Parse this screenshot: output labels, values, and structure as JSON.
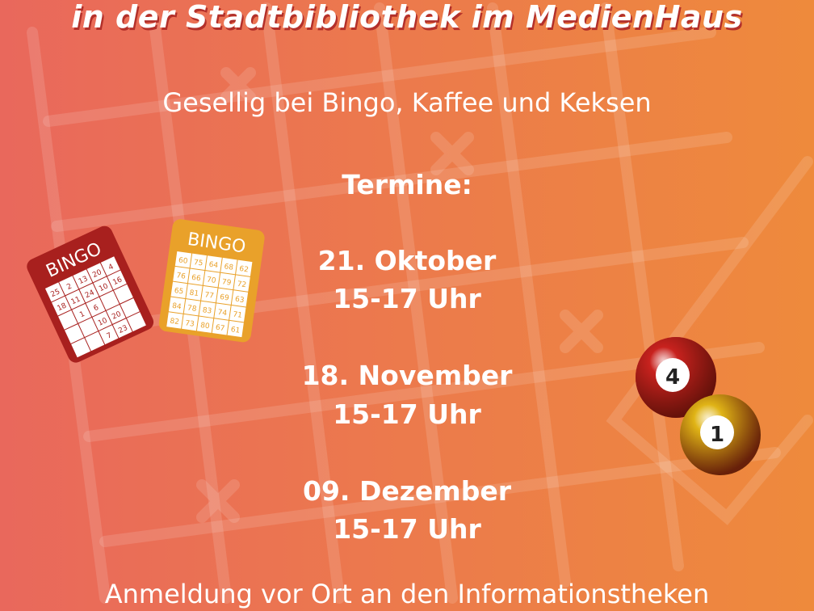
{
  "poster": {
    "title_line": "in der Stadtbibliothek im MedienHaus",
    "subtitle": "Gesellig bei Bingo, Kaffee und Keksen",
    "dates_heading": "Termine:",
    "dates": [
      {
        "date": "21. Oktober",
        "time": "15-17 Uhr"
      },
      {
        "date": "18. November",
        "time": "15-17 Uhr"
      },
      {
        "date": "09. Dezember",
        "time": "15-17 Uhr"
      }
    ],
    "footer": "Anmeldung vor Ort an den Informationstheken"
  },
  "illustrations": {
    "red_card": {
      "label": "BINGO",
      "numbers": [
        [
          25,
          2,
          13,
          20,
          4
        ],
        [
          18,
          11,
          24,
          10,
          16
        ],
        [
          "",
          1,
          6,
          "",
          ""
        ],
        [
          "",
          "",
          10,
          20,
          ""
        ],
        [
          "",
          "",
          7,
          23,
          ""
        ]
      ]
    },
    "yellow_card": {
      "label": "BINGO",
      "numbers": [
        [
          60,
          75,
          64,
          68,
          62
        ],
        [
          76,
          66,
          70,
          79,
          72
        ],
        [
          65,
          81,
          77,
          69,
          63
        ],
        [
          84,
          78,
          83,
          74,
          71
        ],
        [
          82,
          73,
          80,
          67,
          61
        ]
      ]
    },
    "balls": [
      {
        "number": "4",
        "color": "#c8221e"
      },
      {
        "number": "1",
        "color": "#e0b416"
      }
    ]
  },
  "colors": {
    "background_left": "#e9685c",
    "background_right": "#ee8a3c",
    "title_shadow": "#b3302a"
  }
}
